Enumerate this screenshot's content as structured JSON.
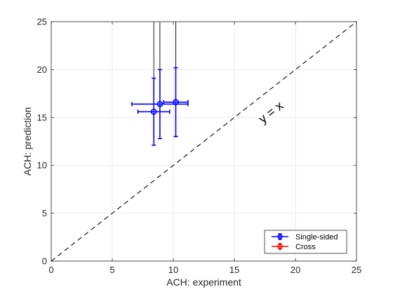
{
  "chart_data": {
    "type": "scatter",
    "title": "",
    "xlabel": "ACH: experiment",
    "ylabel": "ACH: prediction",
    "xlim": [
      0,
      25
    ],
    "ylim": [
      0,
      25
    ],
    "xticks": [
      "0",
      "5",
      "10",
      "15",
      "20",
      "25"
    ],
    "yticks": [
      "0",
      "5",
      "10",
      "15",
      "20",
      "25"
    ],
    "grid": true,
    "legend_position": "bottom-right",
    "reference_line": {
      "label": "y = x",
      "style": "dashed",
      "color": "#000000",
      "x": [
        0,
        25
      ],
      "y": [
        0,
        25
      ]
    },
    "vertical_lines": {
      "color": "#000000",
      "x": [
        8.4,
        8.9,
        10.2
      ]
    },
    "series": [
      {
        "name": "Single-sided",
        "color": "#0000ff",
        "marker": "circle",
        "points": [
          {
            "x": 8.4,
            "y": 15.6,
            "xerr": 1.3,
            "yerr": 3.5
          },
          {
            "x": 8.9,
            "y": 16.4,
            "xerr": 2.3,
            "yerr": 3.6
          },
          {
            "x": 10.2,
            "y": 16.6,
            "xerr": 1.0,
            "yerr": 3.6
          }
        ]
      },
      {
        "name": "Cross",
        "color": "#ff0000",
        "marker": "circle",
        "points": []
      }
    ]
  }
}
